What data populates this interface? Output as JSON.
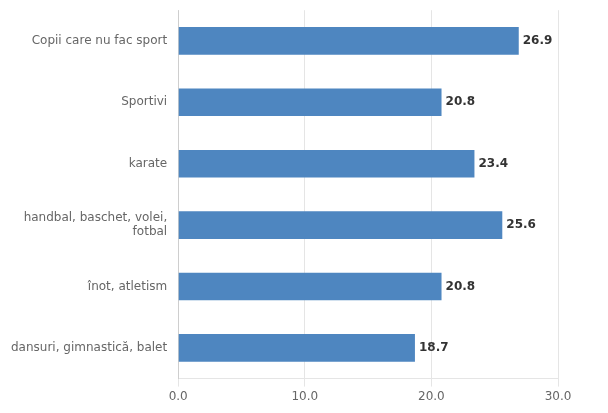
{
  "chart_data": {
    "type": "bar",
    "orientation": "horizontal",
    "categories": [
      "dansuri, gimnastică, balet",
      "înot, atletism",
      "handbal, baschet, volei,\nfotbal",
      "karate",
      "Sportivi",
      "Copii care nu fac sport"
    ],
    "values": [
      18.7,
      20.8,
      25.6,
      23.4,
      20.8,
      26.9
    ],
    "color": "#4e86c0",
    "xlim": [
      0,
      30
    ],
    "xticks": [
      {
        "value": 0,
        "label": "0.0"
      },
      {
        "value": 10,
        "label": "10.0"
      },
      {
        "value": 20,
        "label": "20.0"
      },
      {
        "value": 30,
        "label": "30.0"
      }
    ],
    "grid": true,
    "data_labels": true
  }
}
